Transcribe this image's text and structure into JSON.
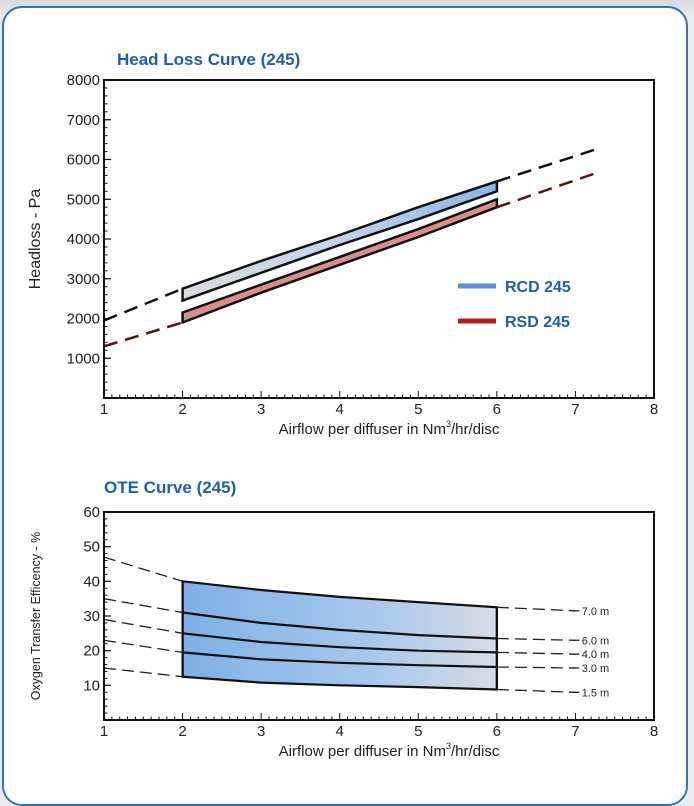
{
  "colors": {
    "border": "#2f73b8",
    "title": "#1f5ea8",
    "rcd": "#5b8fd6",
    "rsd": "#b11e1e"
  },
  "chart_data": [
    {
      "type": "line",
      "title": "Head Loss Curve (245)",
      "xlabel": "Airflow per diffuser in Nm",
      "xlabel_sup": "3",
      "xlabel_tail": "/hr/disc",
      "ylabel": "Headloss - Pa",
      "xlim": [
        1,
        8
      ],
      "ylim": [
        0,
        8000
      ],
      "xticks": [
        "1",
        "2",
        "3",
        "4",
        "5",
        "6",
        "7",
        "8"
      ],
      "yticks": [
        "1000",
        "2000",
        "3000",
        "4000",
        "5000",
        "6000",
        "7000",
        "8000"
      ],
      "legend": {
        "position": "right",
        "entries": [
          {
            "name": "RCD 245",
            "color": "#5b8fd6"
          },
          {
            "name": "RSD 245",
            "color": "#b11e1e"
          }
        ]
      },
      "series": [
        {
          "name": "RCD 245",
          "band_x": [
            2,
            6
          ],
          "upper": [
            [
              1,
              1950
            ],
            [
              2,
              2750
            ],
            [
              3,
              3450
            ],
            [
              4,
              4100
            ],
            [
              5,
              4800
            ],
            [
              6,
              5450
            ],
            [
              7.25,
              6250
            ]
          ],
          "lower": [
            [
              2,
              2450
            ],
            [
              3,
              3150
            ],
            [
              4,
              3850
            ],
            [
              5,
              4500
            ],
            [
              6,
              5200
            ]
          ]
        },
        {
          "name": "RSD 245",
          "band_x": [
            2,
            6
          ],
          "upper": [
            [
              2,
              2150
            ],
            [
              3,
              2850
            ],
            [
              4,
              3550
            ],
            [
              5,
              4250
            ],
            [
              6,
              5000
            ]
          ],
          "lower": [
            [
              1,
              1300
            ],
            [
              2,
              1900
            ],
            [
              3,
              2650
            ],
            [
              4,
              3350
            ],
            [
              5,
              4050
            ],
            [
              6,
              4800
            ],
            [
              7.25,
              5650
            ]
          ]
        }
      ]
    },
    {
      "type": "line",
      "title": "OTE Curve (245)",
      "xlabel": "Airflow per diffuser in Nm",
      "xlabel_sup": "3",
      "xlabel_tail": "/hr/disc",
      "ylabel": "Oxygen Transfer Efficency - %",
      "xlim": [
        1,
        8
      ],
      "ylim": [
        0,
        60
      ],
      "xticks": [
        "1",
        "2",
        "3",
        "4",
        "5",
        "6",
        "7",
        "8"
      ],
      "yticks": [
        "10",
        "20",
        "30",
        "40",
        "50",
        "60"
      ],
      "series": [
        {
          "name": "7.0 m",
          "values": [
            [
              1,
              47
            ],
            [
              2,
              40
            ],
            [
              3,
              37.5
            ],
            [
              4,
              35.5
            ],
            [
              5,
              34
            ],
            [
              6,
              32.5
            ],
            [
              7,
              31.5
            ]
          ]
        },
        {
          "name": "6.0 m",
          "values": [
            [
              1,
              35
            ],
            [
              2,
              31
            ],
            [
              3,
              28
            ],
            [
              4,
              26
            ],
            [
              5,
              24.5
            ],
            [
              6,
              23.5
            ],
            [
              7,
              23
            ]
          ]
        },
        {
          "name": "4.0 m",
          "values": [
            [
              1,
              29
            ],
            [
              2,
              25
            ],
            [
              3,
              22.5
            ],
            [
              4,
              21
            ],
            [
              5,
              20
            ],
            [
              6,
              19.5
            ],
            [
              7,
              19
            ]
          ]
        },
        {
          "name": "3.0 m",
          "values": [
            [
              1,
              23
            ],
            [
              2,
              19.5
            ],
            [
              3,
              17.5
            ],
            [
              4,
              16.5
            ],
            [
              5,
              15.8
            ],
            [
              6,
              15.3
            ],
            [
              7,
              15
            ]
          ]
        },
        {
          "name": "1.5 m",
          "values": [
            [
              1,
              15
            ],
            [
              2,
              12.5
            ],
            [
              3,
              10.8
            ],
            [
              4,
              10
            ],
            [
              5,
              9.5
            ],
            [
              6,
              8.8
            ],
            [
              7,
              8
            ]
          ]
        }
      ]
    }
  ]
}
